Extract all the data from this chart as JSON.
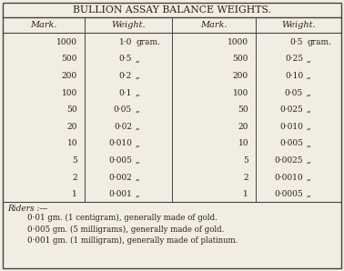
{
  "title": "BULLION ASSAY BALANCE WEIGHTS.",
  "left_marks": [
    "1000",
    "500",
    "200",
    "100",
    "50",
    "20",
    "10",
    "5",
    "2",
    "1"
  ],
  "left_weights": [
    "1·0",
    "0·5",
    "0·2",
    "0·1",
    "0·05",
    "0·02",
    "0·010",
    "0·005",
    "0·002",
    "0·001"
  ],
  "left_units": [
    "gram.",
    ",,",
    ",,",
    ",,",
    ",,",
    ",,",
    ",,",
    ",,",
    ",,",
    ",,"
  ],
  "right_marks": [
    "1000",
    "500",
    "200",
    "100",
    "50",
    "20",
    "10",
    "5",
    "2",
    "1"
  ],
  "right_weights": [
    "0·5",
    "0·25",
    "0·10",
    "0·05",
    "0·025",
    "0·010",
    "0·005",
    "0·0025",
    "0·0010",
    "0·0005"
  ],
  "right_units": [
    "gram.",
    ",,",
    ",,",
    ",,",
    ",,",
    ",,",
    ",,",
    ",,",
    ",,",
    ",,"
  ],
  "riders_label": "Riders :—",
  "riders": [
    "0·01 gm. (1 centigram), generally made of gold.",
    "0·005 gm. (5 milligrams), generally made of gold.",
    "0·001 gm. (1 milligram), generally made of platinum."
  ],
  "bg_color": "#f2ede3",
  "text_color": "#2a2018",
  "line_color": "#444444",
  "font_size": 6.5,
  "title_font_size": 7.8,
  "header_font_size": 7.0
}
